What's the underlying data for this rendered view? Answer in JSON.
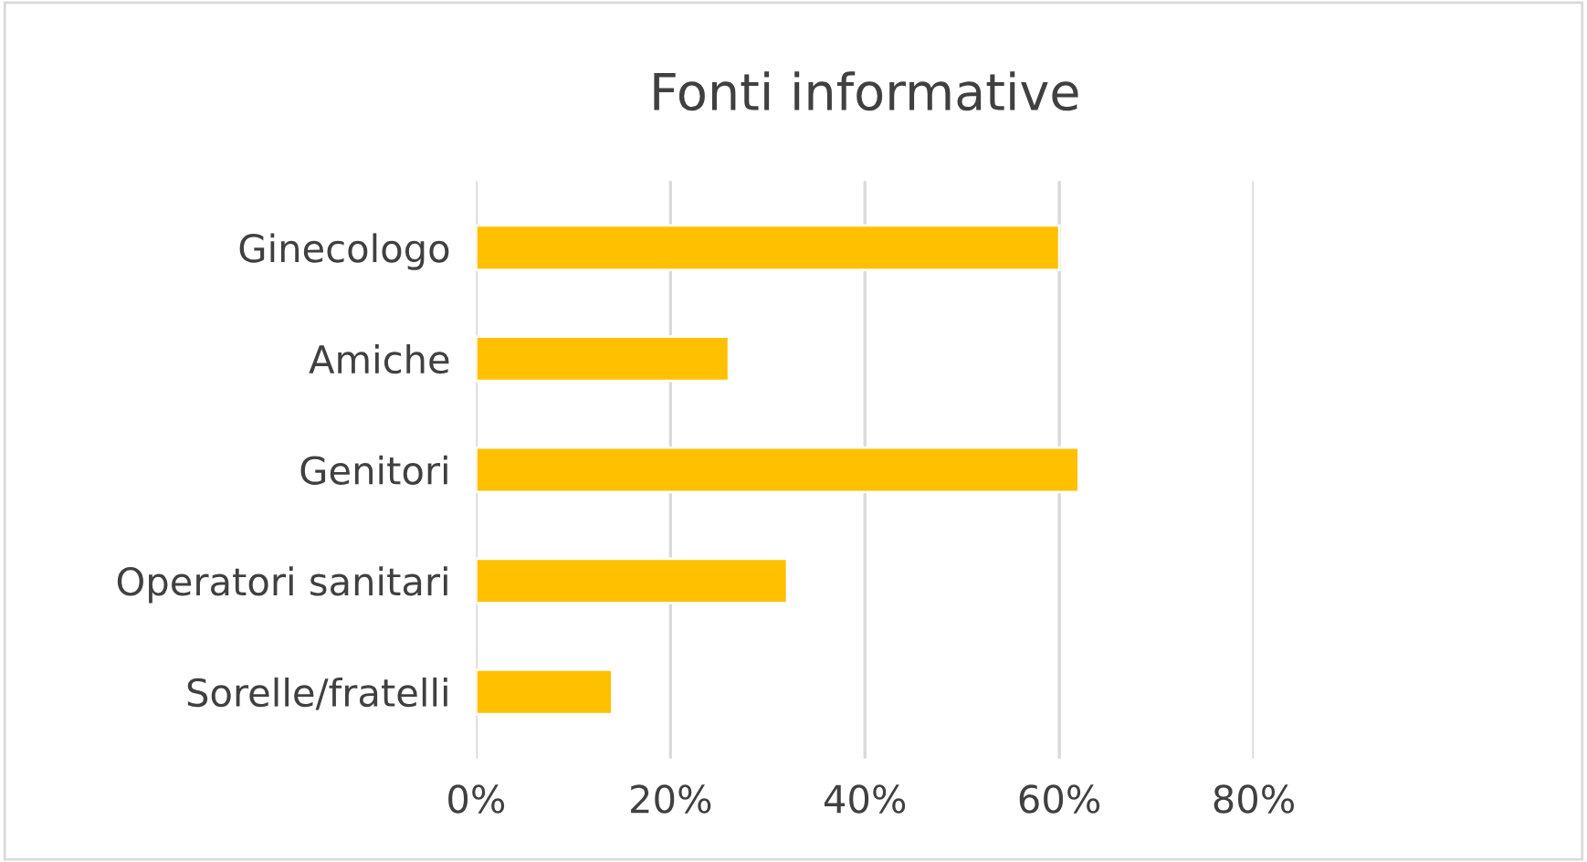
{
  "chart_data": {
    "type": "bar",
    "orientation": "horizontal",
    "title": "Fonti informative",
    "categories": [
      "Ginecologo",
      "Amiche",
      "Genitori",
      "Operatori sanitari",
      "Sorelle/fratelli"
    ],
    "values": [
      60,
      26,
      62,
      32,
      14
    ],
    "color": "#ffc000",
    "xlim": [
      0,
      80
    ],
    "xticks": [
      {
        "value": 0,
        "label": "0%"
      },
      {
        "value": 20,
        "label": "20%"
      },
      {
        "value": 40,
        "label": "40%"
      },
      {
        "value": 60,
        "label": "60%"
      },
      {
        "value": 80,
        "label": "80%"
      }
    ],
    "grid": "x",
    "legend": false
  }
}
